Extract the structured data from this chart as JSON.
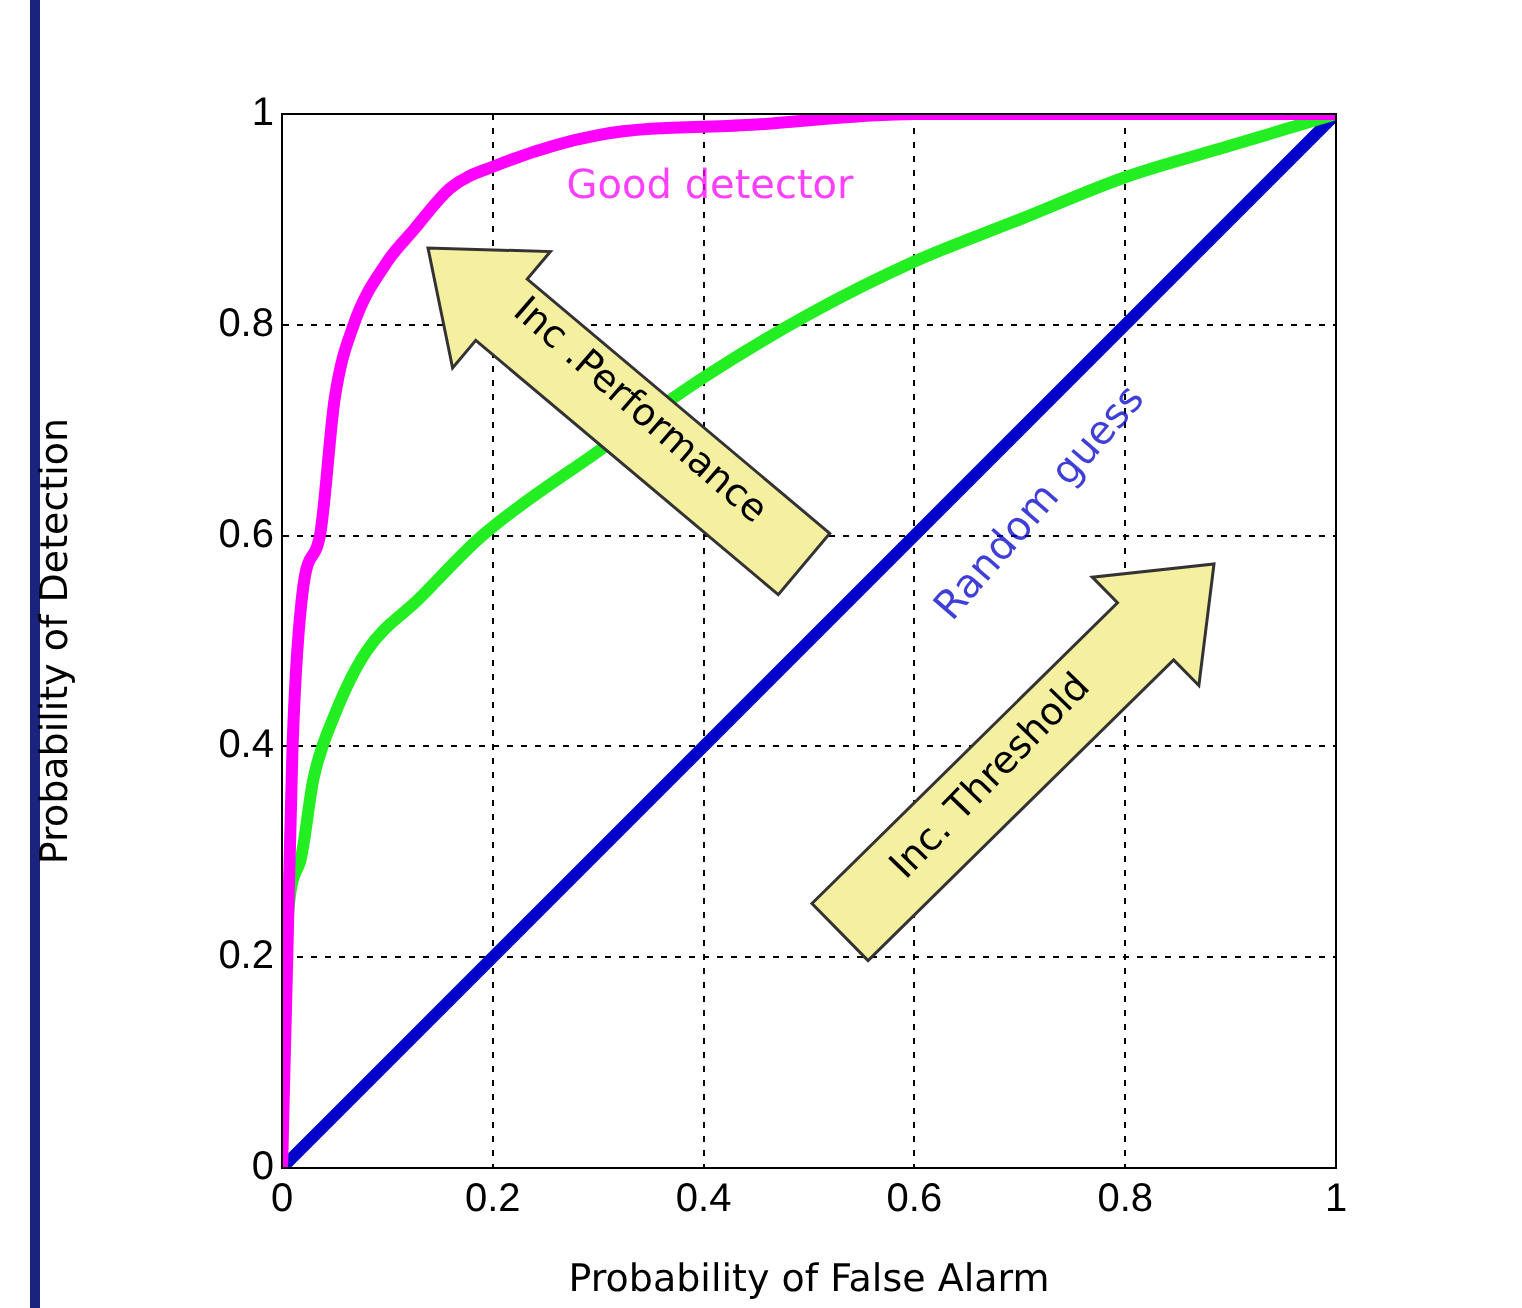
{
  "chart_data": {
    "type": "line",
    "xlabel": "Probability of False Alarm",
    "ylabel": "Probability of Detection",
    "xlim": [
      0,
      1
    ],
    "ylim": [
      0,
      1
    ],
    "xticks": [
      0,
      0.2,
      0.4,
      0.6,
      0.8,
      1
    ],
    "yticks": [
      0,
      0.2,
      0.4,
      0.6,
      0.8,
      1
    ],
    "grid": true,
    "legend": false,
    "marker": "none",
    "line_style": "solid",
    "series": [
      {
        "name": "Good detector",
        "color": "#ff00ff",
        "x": [
          0,
          0.005,
          0.01,
          0.02,
          0.036,
          0.05,
          0.068,
          0.1,
          0.125,
          0.16,
          0.2,
          0.3,
          0.45,
          0.6,
          0.8,
          1
        ],
        "values": [
          0,
          0.2,
          0.4,
          0.55,
          0.6,
          0.73,
          0.8,
          0.86,
          0.89,
          0.93,
          0.95,
          0.98,
          0.99,
          1,
          1,
          1
        ]
      },
      {
        "color": "#22ee22",
        "x": [
          0,
          0.003,
          0.017,
          0.03,
          0.05,
          0.08,
          0.13,
          0.19,
          0.3,
          0.4,
          0.5,
          0.6,
          0.7,
          0.8,
          0.9,
          1
        ],
        "values": [
          0,
          0.2,
          0.29,
          0.37,
          0.43,
          0.49,
          0.54,
          0.6,
          0.68,
          0.75,
          0.81,
          0.86,
          0.9,
          0.94,
          0.97,
          1
        ]
      },
      {
        "name": "Random guess",
        "color": "#0000cc",
        "x": [
          0,
          1
        ],
        "values": [
          0,
          1
        ]
      }
    ],
    "annotations": [
      "Inc .Performance",
      "Inc. Threshold"
    ]
  }
}
